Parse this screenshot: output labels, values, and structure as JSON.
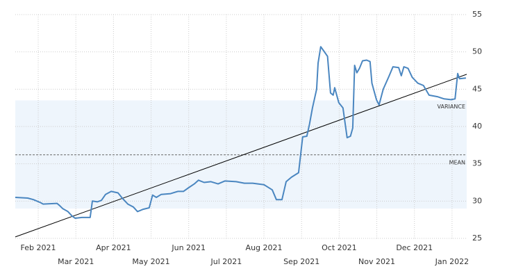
{
  "chart_data": {
    "type": "line",
    "xlim": [
      0.39,
      12.39
    ],
    "ylim": [
      25,
      55
    ],
    "xticks": [
      {
        "value": 1,
        "label": "Feb 2021"
      },
      {
        "value": 2,
        "label": "Mar 2021"
      },
      {
        "value": 3,
        "label": "Apr 2021"
      },
      {
        "value": 4,
        "label": "May 2021"
      },
      {
        "value": 5,
        "label": "Jun 2021"
      },
      {
        "value": 6,
        "label": "Jul 2021"
      },
      {
        "value": 7,
        "label": "Aug 2021"
      },
      {
        "value": 8,
        "label": "Sep 2021"
      },
      {
        "value": 9,
        "label": "Oct 2021"
      },
      {
        "value": 10,
        "label": "Nov 2021"
      },
      {
        "value": 11,
        "label": "Dec 2021"
      },
      {
        "value": 12,
        "label": "Jan 2022"
      }
    ],
    "yticks": [
      25,
      30,
      35,
      40,
      45,
      50,
      55
    ],
    "grid": true,
    "series": [
      {
        "color": "#4a86c0",
        "x": [
          0.39,
          0.72,
          0.87,
          1.06,
          1.13,
          1.5,
          1.57,
          1.65,
          1.79,
          1.9,
          1.98,
          2.16,
          2.38,
          2.44,
          2.57,
          2.68,
          2.79,
          2.94,
          3.12,
          3.25,
          3.38,
          3.53,
          3.64,
          3.79,
          3.95,
          4.04,
          4.14,
          4.27,
          4.52,
          4.71,
          4.86,
          5.0,
          5.15,
          5.26,
          5.41,
          5.59,
          5.78,
          5.96,
          6.26,
          6.48,
          6.7,
          7.0,
          7.22,
          7.33,
          7.48,
          7.59,
          7.73,
          7.92,
          8.03,
          8.14,
          8.21,
          8.29,
          8.4,
          8.44,
          8.51,
          8.58,
          8.69,
          8.77,
          8.84,
          8.88,
          8.99,
          9.1,
          9.21,
          9.3,
          9.36,
          9.41,
          9.47,
          9.54,
          9.62,
          9.73,
          9.82,
          9.87,
          9.99,
          10.06,
          10.17,
          10.32,
          10.43,
          10.58,
          10.65,
          10.72,
          10.83,
          10.94,
          11.09,
          11.24,
          11.39,
          11.61,
          11.79,
          11.97,
          12.08,
          12.15,
          12.2,
          12.37
        ],
        "values": [
          30.5,
          30.4,
          30.2,
          29.8,
          29.6,
          29.7,
          29.4,
          29.0,
          28.6,
          28.0,
          27.7,
          27.8,
          27.8,
          30.0,
          29.9,
          30.1,
          30.9,
          31.3,
          31.1,
          30.3,
          29.6,
          29.2,
          28.6,
          28.9,
          29.1,
          30.8,
          30.5,
          30.9,
          31.0,
          31.3,
          31.3,
          31.8,
          32.3,
          32.8,
          32.5,
          32.6,
          32.3,
          32.7,
          32.6,
          32.4,
          32.4,
          32.2,
          31.5,
          30.2,
          30.2,
          32.6,
          33.2,
          33.8,
          38.6,
          38.7,
          40.3,
          42.5,
          45.0,
          48.5,
          50.7,
          50.2,
          49.4,
          44.5,
          44.2,
          45.2,
          43.2,
          42.5,
          38.5,
          38.7,
          39.8,
          48.2,
          47.2,
          47.8,
          48.8,
          48.9,
          48.7,
          45.8,
          43.6,
          42.9,
          45.0,
          46.7,
          48.0,
          47.9,
          46.8,
          48.0,
          47.8,
          46.6,
          45.8,
          45.5,
          44.2,
          44.0,
          43.7,
          43.6,
          43.7,
          47.1,
          46.4,
          46.5
        ]
      }
    ],
    "trend": {
      "x": [
        0.39,
        12.39
      ],
      "values": [
        25.2,
        47.0
      ],
      "color": "#000000"
    },
    "variance": {
      "label": "VARIANCE",
      "range": [
        29.0,
        43.5
      ],
      "color": "#eef5fc"
    },
    "mean": {
      "label": "MEAN",
      "value": 36.2
    }
  }
}
